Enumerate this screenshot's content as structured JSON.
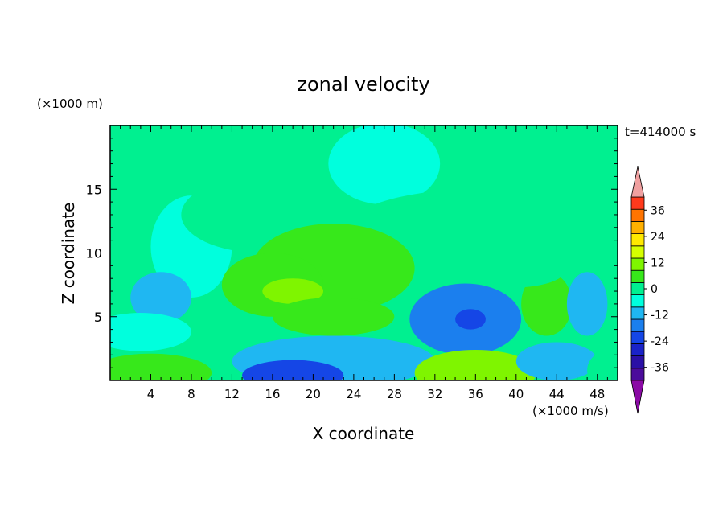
{
  "chart_data": {
    "type": "heatmap",
    "title": "zonal velocity",
    "xlabel": "X coordinate",
    "ylabel": "Z coordinate",
    "x_unit": "(×1000 m/s)",
    "y_unit": "(×1000 m)",
    "time_label": "t=414000 s",
    "xlim": [
      0,
      50
    ],
    "ylim": [
      0,
      20
    ],
    "x_ticks": [
      4,
      8,
      12,
      16,
      20,
      24,
      28,
      32,
      36,
      40,
      44,
      48
    ],
    "y_ticks": [
      5,
      10,
      15
    ],
    "colorbar": {
      "levels": [
        -42,
        -36,
        -30,
        -24,
        -18,
        -12,
        -6,
        0,
        6,
        12,
        18,
        24,
        30,
        36,
        42
      ],
      "tick_labels": [
        "36",
        "24",
        "12",
        "0",
        "-12",
        "-24",
        "-36"
      ],
      "tick_values": [
        36,
        24,
        12,
        0,
        -12,
        -24,
        -36
      ],
      "colors": [
        "#4b0c9b",
        "#2a10a6",
        "#1a23c8",
        "#1546e6",
        "#1b7fee",
        "#1fb7f2",
        "#00ffdd",
        "#00f090",
        "#37e81b",
        "#7ff500",
        "#d6ff00",
        "#ffe900",
        "#ffb000",
        "#ff7400",
        "#ff3a1c"
      ],
      "under_color": "#8b0aa5",
      "over_color": "#f0a0a0"
    },
    "background_value": 0,
    "features": [
      {
        "x": 27,
        "y": 17,
        "rx": 5.5,
        "ry": 3.2,
        "value": -4
      },
      {
        "x": 8,
        "y": 10.5,
        "rx": 4,
        "ry": 4,
        "value": -3
      },
      {
        "x": 36,
        "y": 11,
        "rx": 14,
        "ry": 4,
        "value": 2
      },
      {
        "x": 15,
        "y": 13,
        "rx": 8,
        "ry": 3,
        "value": 3
      },
      {
        "x": 22,
        "y": 8.8,
        "rx": 8,
        "ry": 3.5,
        "value": 7
      },
      {
        "x": 16,
        "y": 7.5,
        "rx": 5,
        "ry": 2.5,
        "value": 8
      },
      {
        "x": 18,
        "y": 7,
        "rx": 3,
        "ry": 1,
        "value": 13
      },
      {
        "x": 22,
        "y": 5,
        "rx": 6,
        "ry": 1.5,
        "value": 6
      },
      {
        "x": 43,
        "y": 6,
        "rx": 2.5,
        "ry": 2.5,
        "value": 6
      },
      {
        "x": 40,
        "y": 8.8,
        "rx": 5,
        "ry": 1.5,
        "value": 3
      },
      {
        "x": 5,
        "y": 6.5,
        "rx": 3,
        "ry": 2,
        "value": -12
      },
      {
        "x": 3,
        "y": 3.8,
        "rx": 5,
        "ry": 1.5,
        "value": -6
      },
      {
        "x": 11,
        "y": 2.5,
        "rx": 2,
        "ry": 2,
        "value": 3
      },
      {
        "x": 30,
        "y": 4,
        "rx": 2,
        "ry": 2.5,
        "value": 3
      },
      {
        "x": 35,
        "y": 4.8,
        "rx": 5.5,
        "ry": 2.8,
        "value": -13
      },
      {
        "x": 35.5,
        "y": 4.8,
        "rx": 1.5,
        "ry": 0.8,
        "value": -24
      },
      {
        "x": 47,
        "y": 6,
        "rx": 2,
        "ry": 2.5,
        "value": -7
      },
      {
        "x": 22,
        "y": 1.5,
        "rx": 10,
        "ry": 2,
        "value": -9
      },
      {
        "x": 18,
        "y": 0.4,
        "rx": 5,
        "ry": 1.2,
        "value": -20
      },
      {
        "x": 4,
        "y": 0.6,
        "rx": 6,
        "ry": 1.5,
        "value": 10
      },
      {
        "x": 36,
        "y": 0.6,
        "rx": 6,
        "ry": 1.8,
        "value": 12
      },
      {
        "x": 44,
        "y": 1.5,
        "rx": 4,
        "ry": 1.5,
        "value": -9
      },
      {
        "x": 49,
        "y": 0.8,
        "rx": 2,
        "ry": 1.5,
        "value": 3
      }
    ]
  }
}
